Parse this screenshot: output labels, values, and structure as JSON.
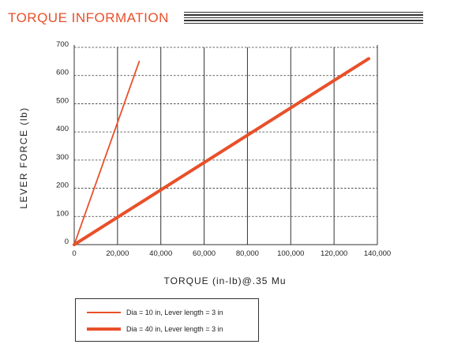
{
  "header": {
    "title": "TORQUE INFORMATION"
  },
  "chart_data": {
    "type": "line",
    "title": "",
    "xlabel": "TORQUE (in-lb)@.35 Mu",
    "ylabel": "LEVER FORCE (lb)",
    "xlim": [
      0,
      140000
    ],
    "ylim": [
      0,
      700
    ],
    "x_ticks": [
      0,
      20000,
      40000,
      60000,
      80000,
      100000,
      120000,
      140000
    ],
    "x_tick_labels": [
      "0",
      "20,000",
      "40,000",
      "60,000",
      "80,000",
      "100,000",
      "120,000",
      "140,000"
    ],
    "y_ticks": [
      0,
      100,
      200,
      300,
      400,
      500,
      600,
      700
    ],
    "y_tick_labels": [
      "0",
      "100",
      "200",
      "300",
      "400",
      "500",
      "600",
      "700"
    ],
    "grid": true,
    "legend_position": "bottom-left",
    "series": [
      {
        "name": "Dia = 10 in, Lever length = 3 in",
        "color": "#e8502a",
        "x": [
          0,
          30000
        ],
        "y": [
          0,
          650
        ]
      },
      {
        "name": "Dia = 40 in, Lever length = 3 in",
        "color": "#e8502a",
        "x": [
          0,
          136000
        ],
        "y": [
          0,
          660
        ]
      }
    ]
  }
}
